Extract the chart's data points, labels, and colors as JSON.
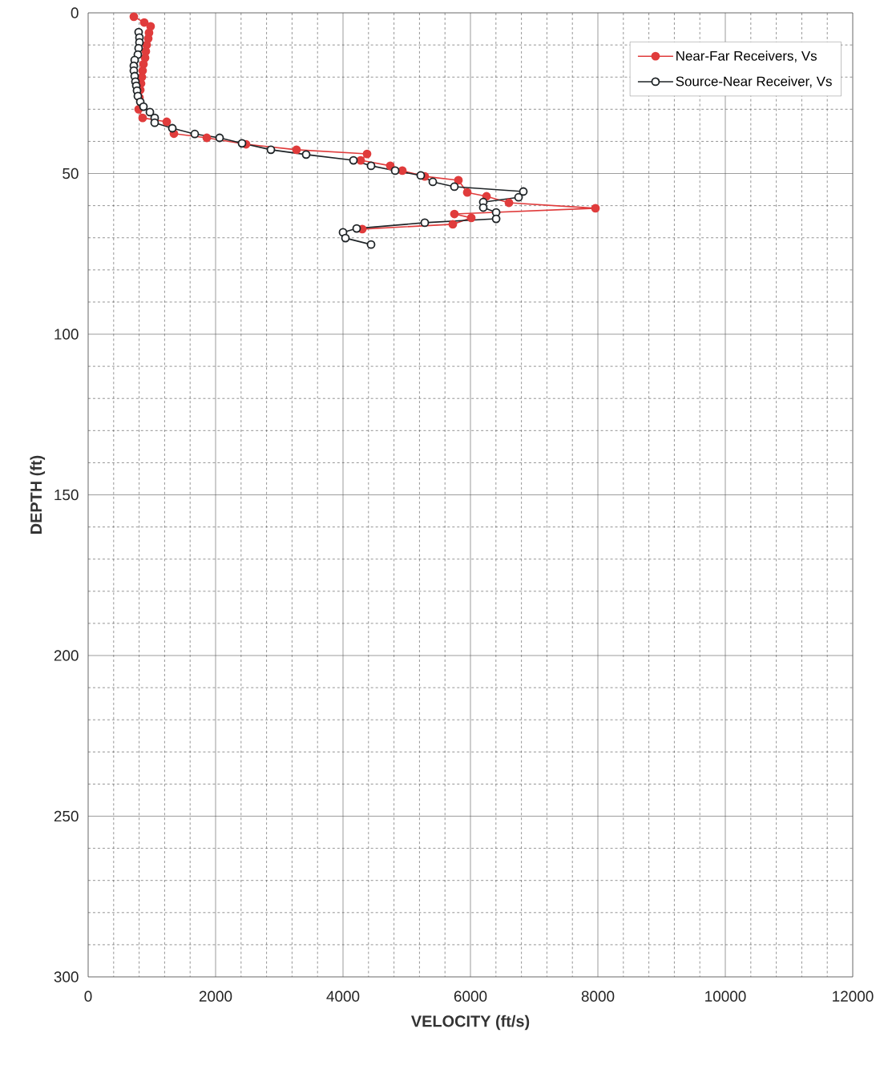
{
  "chart_data": {
    "type": "line",
    "xlabel": "VELOCITY (ft/s)",
    "ylabel": "DEPTH (ft)",
    "xlim": [
      0,
      12000
    ],
    "xticks": [
      0,
      2000,
      4000,
      6000,
      8000,
      10000,
      12000
    ],
    "ylim": [
      300,
      0
    ],
    "yticks": [
      0,
      50,
      100,
      150,
      200,
      250,
      300
    ],
    "grid": true,
    "legend": "top right",
    "marker": "circle",
    "series": [
      {
        "name": "Near-Far Receivers, Vs",
        "color": "#e03c3c",
        "x": [
          717,
          880,
          980,
          955,
          943,
          918,
          905,
          893,
          868,
          855,
          843,
          830,
          818,
          805,
          792,
          855,
          1233,
          1346,
          1862,
          2478,
          3270,
          4377,
          4277,
          4742,
          4931,
          5283,
          5811,
          5950,
          6252,
          6604,
          7962,
          5748,
          6013,
          5723,
          4302
        ],
        "values": [
          1.2,
          3.0,
          4.2,
          6.2,
          8.0,
          10,
          12,
          14,
          16,
          18,
          20,
          22,
          24,
          26.4,
          30,
          32.7,
          33.9,
          37.6,
          38.9,
          40.9,
          42.6,
          43.9,
          45.9,
          47.6,
          49.1,
          50.9,
          52.1,
          55.9,
          57.1,
          59.1,
          60.8,
          62.6,
          63.8,
          65.8,
          67.3
        ]
      },
      {
        "name": "Source-Near Receiver, Vs",
        "color": "#1e2326",
        "x": [
          792,
          805,
          805,
          792,
          780,
          730,
          717,
          717,
          730,
          742,
          755,
          767,
          780,
          818,
          868,
          969,
          1044,
          1044,
          1321,
          1673,
          2063,
          2415,
          2868,
          3421,
          4164,
          4440,
          4818,
          5220,
          5409,
          5748,
          6830,
          6755,
          6201,
          6201,
          6403,
          6403,
          5283,
          4214,
          4000,
          4038,
          4440
        ],
        "values": [
          6.0,
          7.7,
          9.2,
          11,
          13,
          14.7,
          16.5,
          18,
          19.7,
          21.4,
          22.7,
          24.2,
          25.9,
          27.7,
          29.2,
          30.9,
          32.7,
          34.2,
          35.9,
          37.7,
          38.9,
          40.6,
          42.6,
          44.1,
          45.9,
          47.6,
          49.1,
          50.6,
          52.6,
          54.1,
          55.6,
          57.4,
          58.9,
          60.6,
          62.1,
          64.1,
          65.3,
          67.1,
          68.3,
          70.1,
          72.1
        ]
      }
    ]
  }
}
